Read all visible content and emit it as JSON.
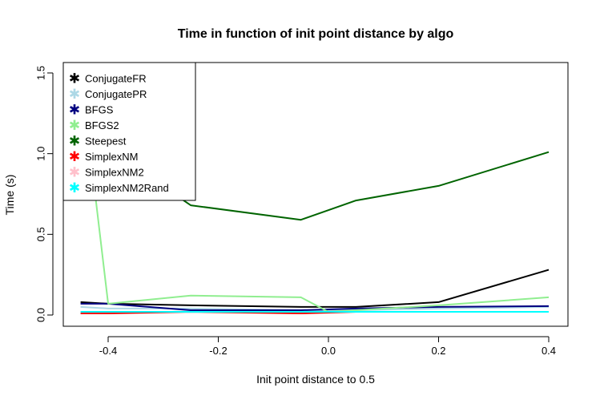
{
  "chart_data": {
    "type": "line",
    "title": "Time in function of init point distance by algo",
    "xlabel": "Init point distance to  0.5",
    "ylabel": "Time (s)",
    "xlim": [
      -0.45,
      0.4
    ],
    "ylim": [
      0,
      1.5
    ],
    "x_ticks": [
      -0.4,
      -0.2,
      0.0,
      0.2,
      0.4
    ],
    "x_tick_labels": [
      "-0.4",
      "-0.2",
      "0.0",
      "0.2",
      "0.4"
    ],
    "y_ticks": [
      0,
      0.5,
      1.0,
      1.5
    ],
    "y_tick_labels": [
      "0.0",
      "0.5",
      "1.0",
      "1.5"
    ],
    "legend_position": "top-left",
    "series": [
      {
        "name": "ConjugateFR",
        "color": "#000000",
        "x": [
          -0.45,
          -0.4,
          -0.25,
          -0.05,
          0.05,
          0.2,
          0.4
        ],
        "y": [
          0.08,
          0.07,
          0.06,
          0.05,
          0.05,
          0.08,
          0.28
        ]
      },
      {
        "name": "ConjugatePR",
        "color": "#add8e6",
        "x": [
          -0.45,
          -0.4,
          -0.25,
          -0.05,
          0.05,
          0.2,
          0.4
        ],
        "y": [
          0.05,
          0.04,
          0.04,
          0.03,
          0.03,
          0.04,
          0.05
        ]
      },
      {
        "name": "BFGS",
        "color": "#000080",
        "x": [
          -0.45,
          -0.4,
          -0.25,
          -0.05,
          0.05,
          0.2,
          0.4
        ],
        "y": [
          0.07,
          0.07,
          0.03,
          0.03,
          0.04,
          0.05,
          0.055
        ]
      },
      {
        "name": "BFGS2",
        "color": "#90ee90",
        "x": [
          -0.45,
          -0.4,
          -0.25,
          -0.05,
          0.0,
          0.05,
          0.2,
          0.4
        ],
        "y": [
          1.51,
          0.07,
          0.12,
          0.11,
          0.02,
          0.03,
          0.06,
          0.11
        ]
      },
      {
        "name": "Steepest",
        "color": "#006400",
        "x": [
          -0.45,
          -0.4,
          -0.25,
          -0.05,
          0.05,
          0.2,
          0.4
        ],
        "y": [
          1.38,
          1.03,
          0.68,
          0.59,
          0.71,
          0.8,
          1.01
        ]
      },
      {
        "name": "SimplexNM",
        "color": "#ff0000",
        "x": [
          -0.45,
          -0.4,
          -0.25,
          -0.05,
          0.05,
          0.2,
          0.4
        ],
        "y": [
          0.01,
          0.01,
          0.02,
          0.01,
          0.02,
          0.02,
          0.02
        ]
      },
      {
        "name": "SimplexNM2",
        "color": "#ffc0cb",
        "x": [
          -0.45,
          -0.4,
          -0.25,
          -0.05,
          0.05,
          0.2,
          0.4
        ],
        "y": [
          0.02,
          0.02,
          0.02,
          0.02,
          0.02,
          0.02,
          0.02
        ]
      },
      {
        "name": "SimplexNM2Rand",
        "color": "#00ffff",
        "x": [
          -0.45,
          -0.4,
          -0.25,
          -0.05,
          0.05,
          0.2,
          0.4
        ],
        "y": [
          0.02,
          0.02,
          0.02,
          0.02,
          0.02,
          0.02,
          0.02
        ]
      }
    ]
  }
}
